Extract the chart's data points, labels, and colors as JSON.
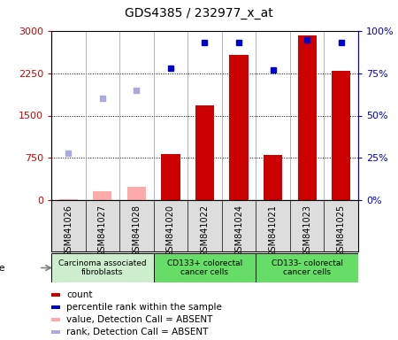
{
  "title": "GDS4385 / 232977_x_at",
  "samples": [
    "GSM841026",
    "GSM841027",
    "GSM841028",
    "GSM841020",
    "GSM841022",
    "GSM841024",
    "GSM841021",
    "GSM841023",
    "GSM841025"
  ],
  "bar_values": [
    10,
    150,
    230,
    820,
    1680,
    2580,
    800,
    2920,
    2300
  ],
  "bar_absent": [
    true,
    true,
    true,
    false,
    false,
    false,
    false,
    false,
    false
  ],
  "rank_values": [
    28,
    60,
    65,
    78,
    93,
    93,
    77,
    95,
    93
  ],
  "rank_absent": [
    true,
    true,
    true,
    false,
    false,
    false,
    false,
    false,
    false
  ],
  "ylim_left": [
    0,
    3000
  ],
  "ylim_right": [
    0,
    100
  ],
  "yticks_left": [
    0,
    750,
    1500,
    2250,
    3000
  ],
  "yticks_right": [
    0,
    25,
    50,
    75,
    100
  ],
  "ytick_labels_left": [
    "0",
    "750",
    "1500",
    "2250",
    "3000"
  ],
  "ytick_labels_right": [
    "0%",
    "25%",
    "50%",
    "75%",
    "100%"
  ],
  "cell_groups": [
    {
      "label": "Carcinoma associated\nfibroblasts",
      "start": 0,
      "end": 3,
      "color": "#cceecc"
    },
    {
      "label": "CD133+ colorectal\ncancer cells",
      "start": 3,
      "end": 6,
      "color": "#66dd66"
    },
    {
      "label": "CD133- colorectal\ncancer cells",
      "start": 6,
      "end": 9,
      "color": "#66dd66"
    }
  ],
  "bar_color_present": "#cc0000",
  "bar_color_absent": "#ffaaaa",
  "rank_color_present": "#0000cc",
  "rank_color_absent": "#aaaadd",
  "bar_width": 0.55,
  "legend_items": [
    {
      "color": "#cc0000",
      "label": "count"
    },
    {
      "color": "#0000cc",
      "label": "percentile rank within the sample"
    },
    {
      "color": "#ffaaaa",
      "label": "value, Detection Call = ABSENT"
    },
    {
      "color": "#aaaadd",
      "label": "rank, Detection Call = ABSENT"
    }
  ]
}
